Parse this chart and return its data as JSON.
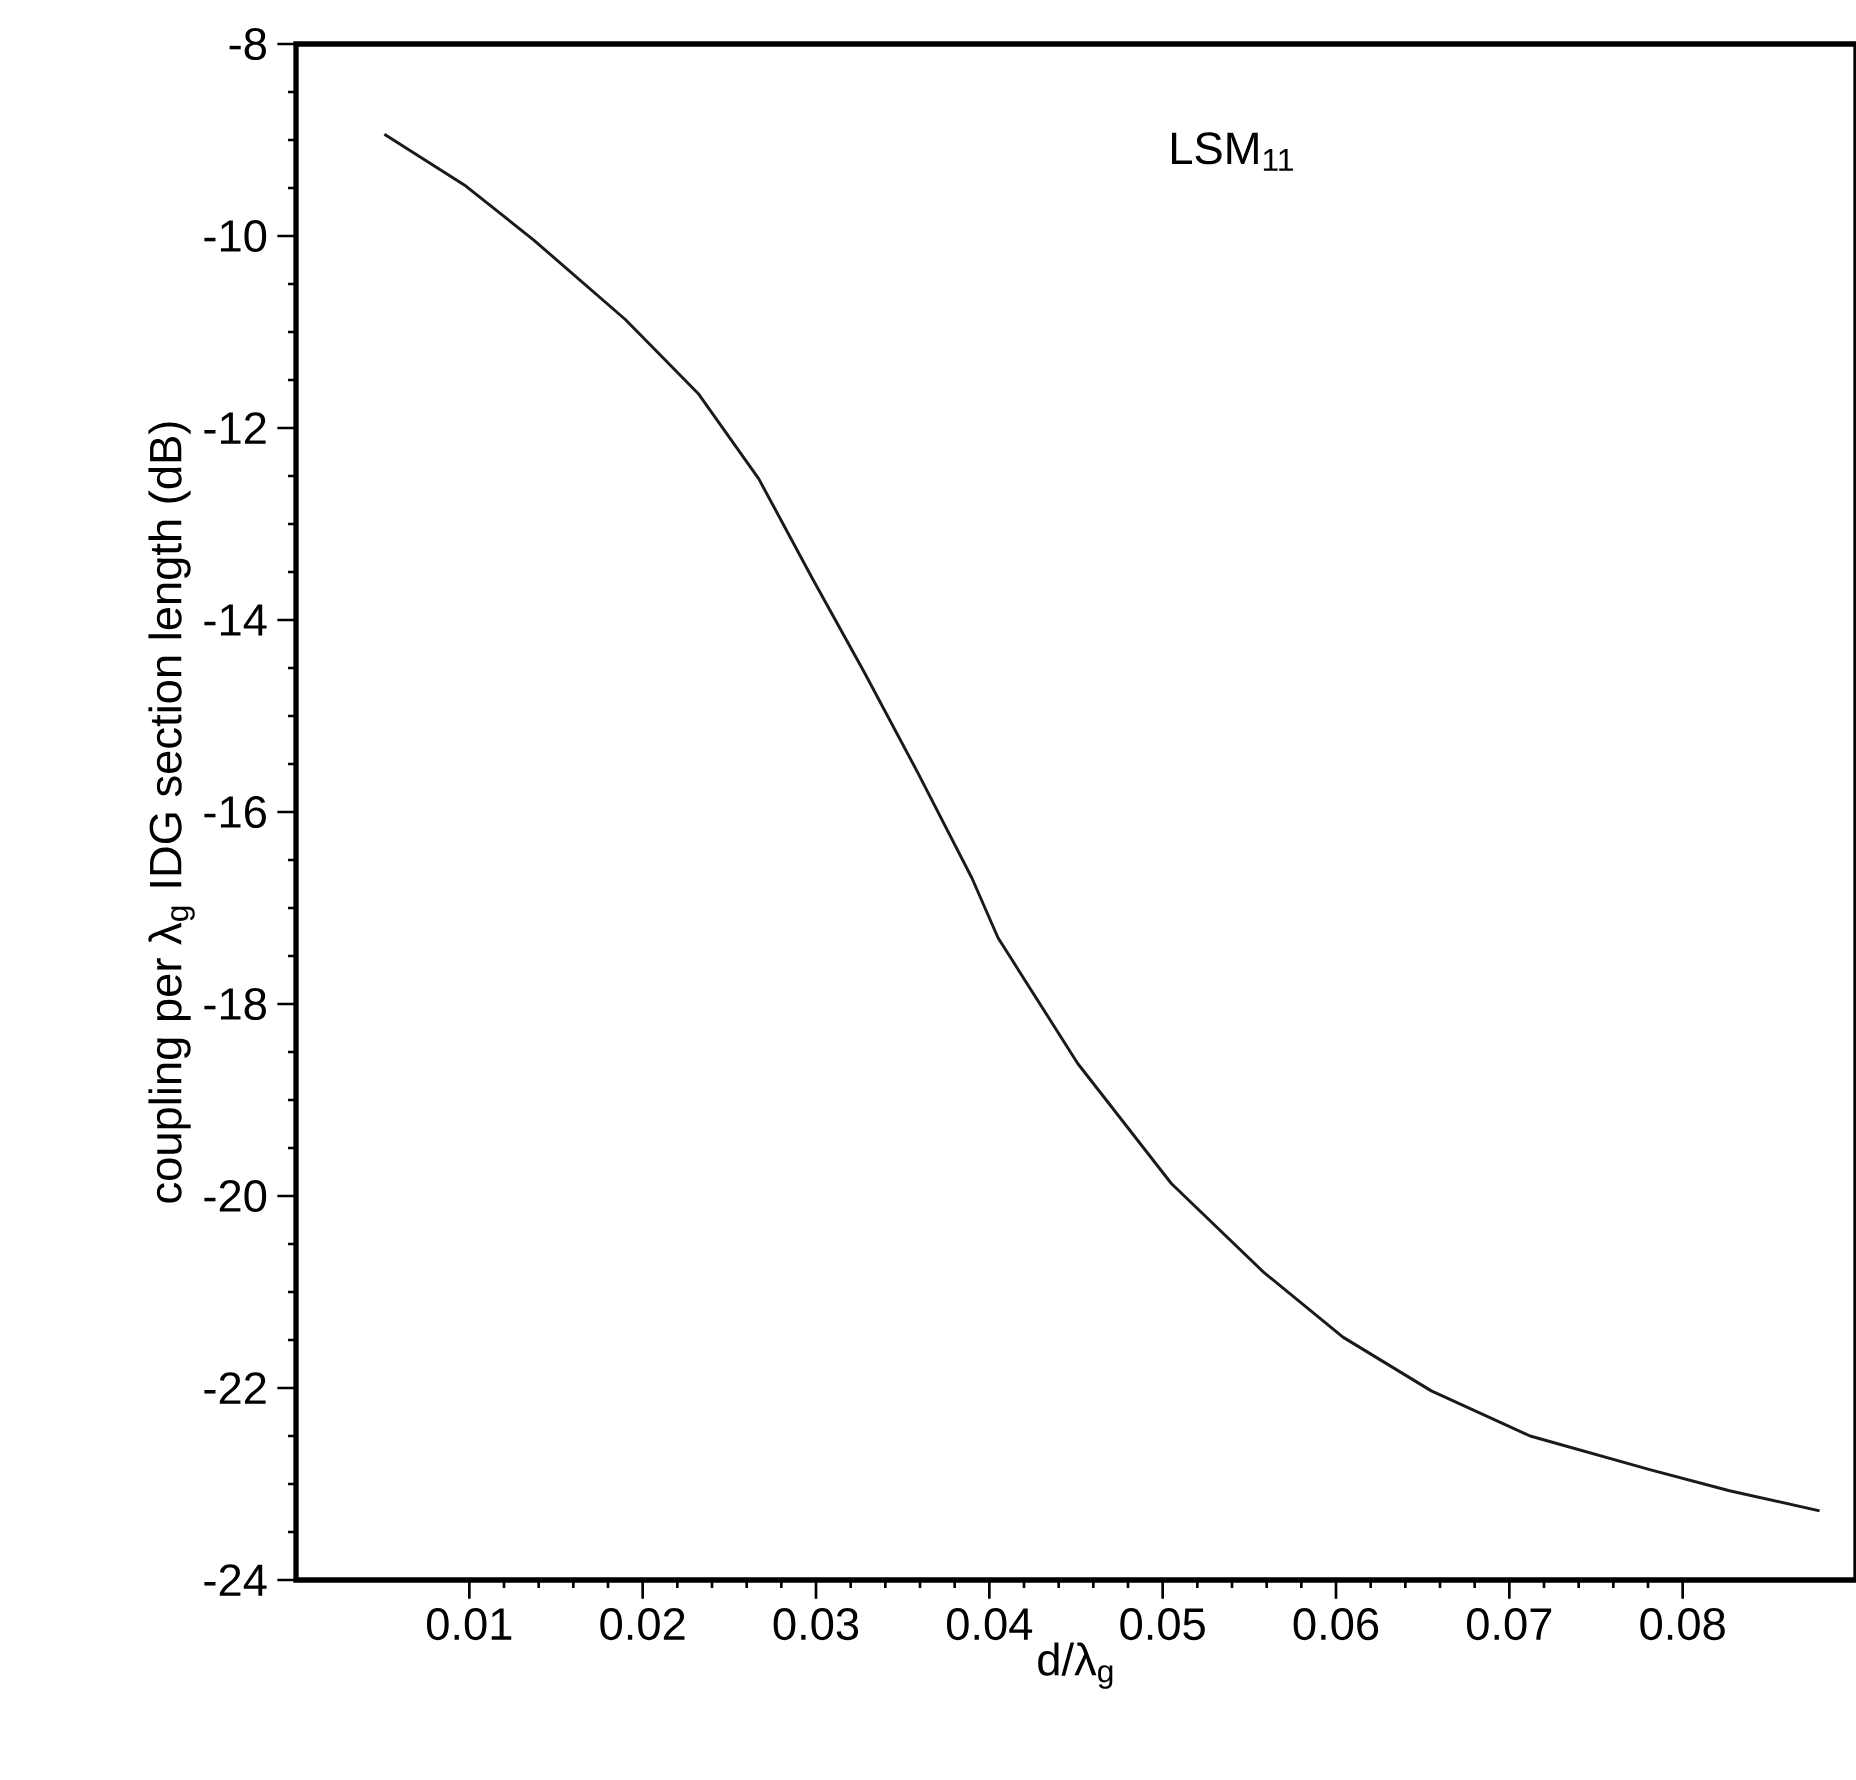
{
  "chart_data": {
    "type": "line",
    "annotations": [
      "LSM$_{11}$"
    ],
    "xlabel": "d/λ$_{g}$",
    "ylabel": "coupling per λ$_{g}$ IDG section length (dB)",
    "x": [
      0.0051,
      0.0098,
      0.0137,
      0.019,
      0.0232,
      0.0267,
      0.0298,
      0.0328,
      0.0359,
      0.039,
      0.0405,
      0.0451,
      0.0505,
      0.0558,
      0.0604,
      0.0655,
      0.0712,
      0.0781,
      0.0827,
      0.0879
    ],
    "values": [
      -8.94,
      -9.48,
      -10.04,
      -10.87,
      -11.64,
      -12.53,
      -13.57,
      -14.55,
      -15.6,
      -16.69,
      -17.31,
      -18.62,
      -19.87,
      -20.79,
      -21.47,
      -22.03,
      -22.5,
      -22.85,
      -23.07,
      -23.28
    ],
    "color": "#1a1a1a",
    "xlim": [
      0,
      0.09
    ],
    "ylim": [
      -24,
      -8
    ],
    "xticks": [
      0.01,
      0.02,
      0.03,
      0.04,
      0.05,
      0.06,
      0.07,
      0.08
    ],
    "yticks": [
      -24,
      -22,
      -20,
      -18,
      -16,
      -14,
      -12,
      -10,
      -8
    ]
  }
}
